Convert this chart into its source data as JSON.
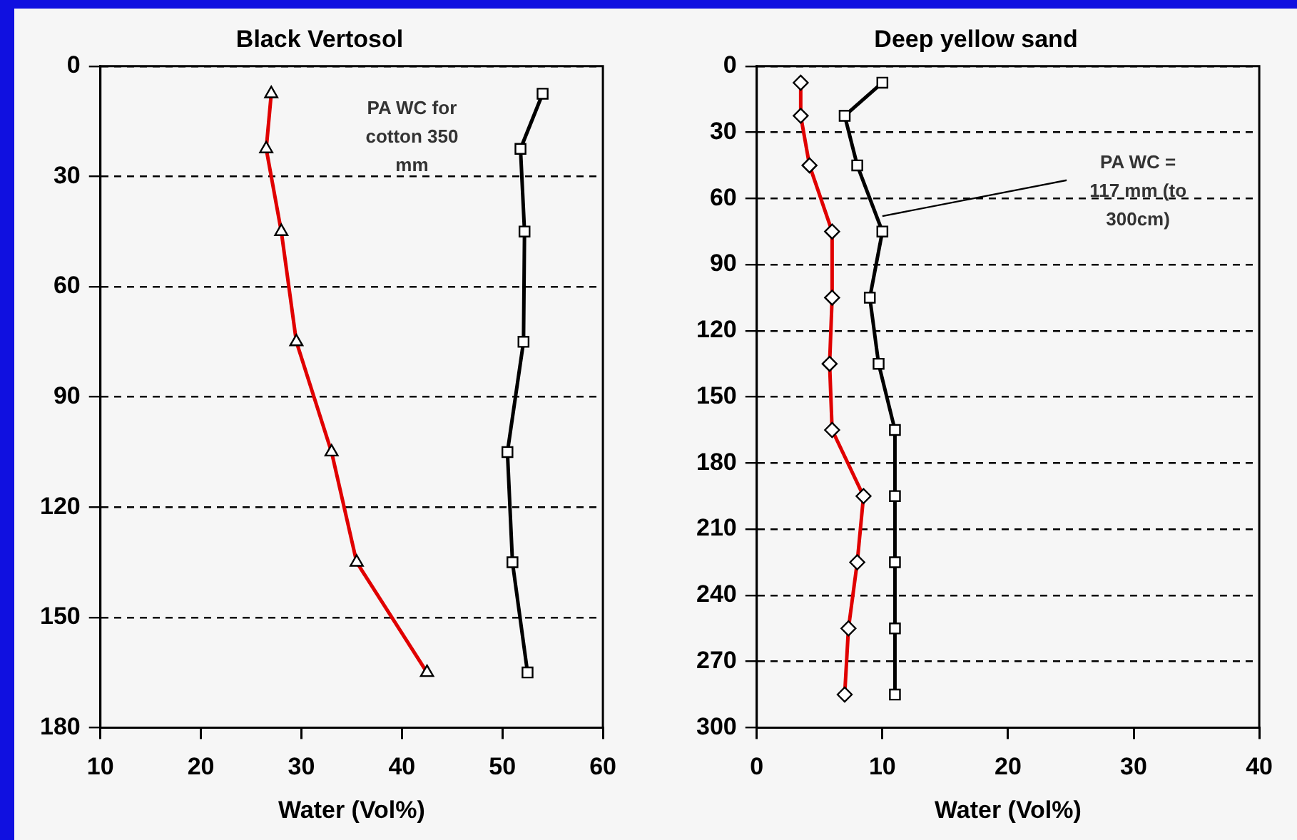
{
  "chart_data": [
    {
      "type": "line",
      "title": "Black Vertosol",
      "xlabel": "Water (Vol%)",
      "xlim": [
        10,
        60
      ],
      "xticks": [
        10,
        20,
        30,
        40,
        50,
        60
      ],
      "ylim": [
        180,
        0
      ],
      "yticks": [
        0,
        30,
        60,
        90,
        120,
        150,
        180
      ],
      "grid": "y",
      "legend": false,
      "line_style": "solid",
      "annotations": [
        "PA WC for cotton 350 mm"
      ],
      "series": [
        {
          "color": "#e00000",
          "marker": "triangle",
          "x": [
            27,
            26.5,
            28,
            29.5,
            33,
            35.5,
            42.5
          ],
          "values": [
            7.5,
            22.5,
            45,
            75,
            105,
            135,
            165
          ]
        },
        {
          "color": "#000000",
          "marker": "square",
          "x": [
            54,
            51.8,
            52.2,
            52.1,
            50.5,
            51,
            52.5
          ],
          "values": [
            7.5,
            22.5,
            45,
            75,
            105,
            135,
            165
          ]
        }
      ]
    },
    {
      "type": "line",
      "title": "Deep yellow sand",
      "xlabel": "Water (Vol%)",
      "xlim": [
        0,
        40
      ],
      "xticks": [
        0,
        10,
        20,
        30,
        40
      ],
      "ylim": [
        300,
        0
      ],
      "yticks": [
        0,
        30,
        60,
        90,
        120,
        150,
        180,
        210,
        240,
        270,
        300
      ],
      "grid": "y",
      "legend": false,
      "line_style": "solid",
      "annotations": [
        {
          "text": "PA WC = 117 mm (to 300cm)",
          "x": 10,
          "y": 68
        }
      ],
      "series": [
        {
          "color": "#e00000",
          "marker": "diamond",
          "x": [
            3.5,
            3.5,
            4.2,
            6,
            6,
            5.8,
            6,
            8.5,
            8,
            7.3,
            7
          ],
          "values": [
            7.5,
            22.5,
            45,
            75,
            105,
            135,
            165,
            195,
            225,
            255,
            285
          ]
        },
        {
          "color": "#000000",
          "marker": "square",
          "x": [
            10,
            7,
            8,
            10,
            9,
            9.7,
            11,
            11,
            11,
            11,
            11
          ],
          "values": [
            7.5,
            22.5,
            45,
            75,
            105,
            135,
            165,
            195,
            225,
            255,
            285
          ]
        }
      ]
    }
  ]
}
